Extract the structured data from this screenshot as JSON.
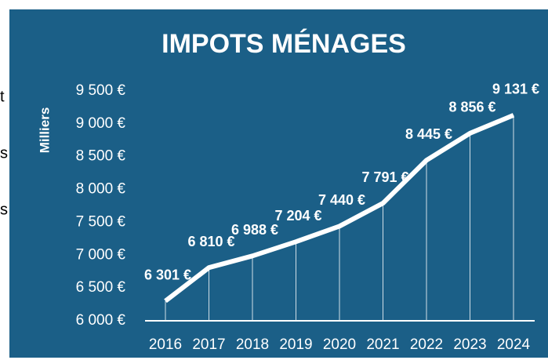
{
  "side_text": [
    "t",
    "s",
    "s"
  ],
  "chart_data": {
    "type": "line",
    "title": "IMPOTS MÉNAGES",
    "y_label": "Milliers",
    "categories": [
      "2016",
      "2017",
      "2018",
      "2019",
      "2020",
      "2021",
      "2022",
      "2023",
      "2024"
    ],
    "values": [
      6301,
      6810,
      6988,
      7204,
      7440,
      7791,
      8445,
      8856,
      9131
    ],
    "value_labels": [
      "6 301 €",
      "6 810 €",
      "6 988 €",
      "7 204 €",
      "7 440 €",
      "7 791 €",
      "8 445 €",
      "8 856 €",
      "9 131 €"
    ],
    "color": "#ffffff",
    "drop_lines": true,
    "ylim": [
      6000,
      9500
    ],
    "yticks": [
      {
        "value": 6000,
        "label": "6 000 €"
      },
      {
        "value": 6500,
        "label": "6 500 €"
      },
      {
        "value": 7000,
        "label": "7 000 €"
      },
      {
        "value": 7500,
        "label": "7 500 €"
      },
      {
        "value": 8000,
        "label": "8 000 €"
      },
      {
        "value": 8500,
        "label": "8 500 €"
      },
      {
        "value": 9000,
        "label": "9 000 €"
      },
      {
        "value": 9500,
        "label": "9 500 €"
      }
    ]
  }
}
